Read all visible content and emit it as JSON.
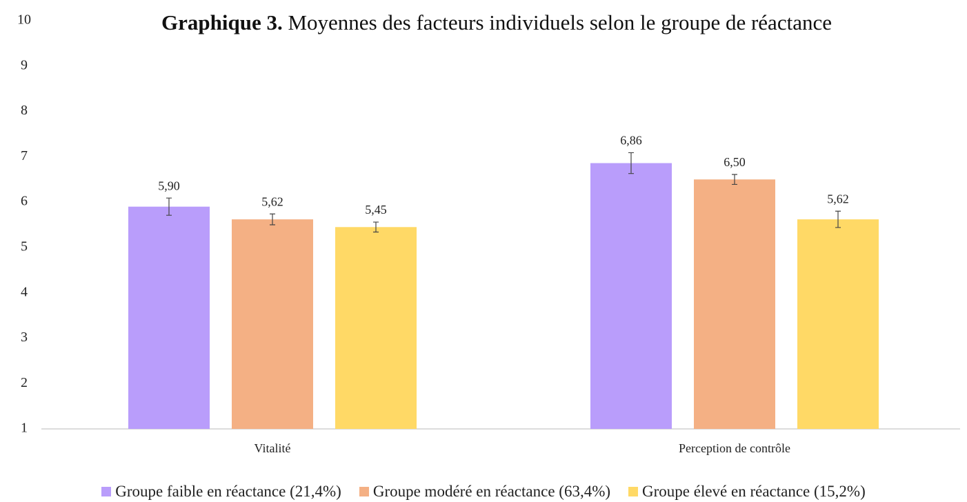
{
  "chart_data": {
    "type": "bar",
    "title_prefix": "Graphique 3.",
    "title": "Moyennes des facteurs individuels selon le groupe de réactance",
    "categories": [
      "Vitalité",
      "Perception de contrôle"
    ],
    "series": [
      {
        "name": "Groupe faible en réactance (21,4%)",
        "color": "#b99dfb",
        "values": [
          5.9,
          6.86
        ],
        "value_labels": [
          "5,90",
          "6,86"
        ],
        "errors": [
          0.19,
          0.23
        ]
      },
      {
        "name": "Groupe modéré en réactance (63,4%)",
        "color": "#f4b084",
        "values": [
          5.62,
          6.5
        ],
        "value_labels": [
          "5,62",
          "6,50"
        ],
        "errors": [
          0.12,
          0.11
        ]
      },
      {
        "name": "Groupe élevé en réactance (15,2%)",
        "color": "#ffd966",
        "values": [
          5.45,
          5.62
        ],
        "value_labels": [
          "5,45",
          "5,62"
        ],
        "errors": [
          0.11,
          0.18
        ]
      }
    ],
    "ylim": [
      1,
      10
    ],
    "yticks": [
      1,
      2,
      3,
      4,
      5,
      6,
      7,
      8,
      9,
      10
    ],
    "grid": false
  }
}
